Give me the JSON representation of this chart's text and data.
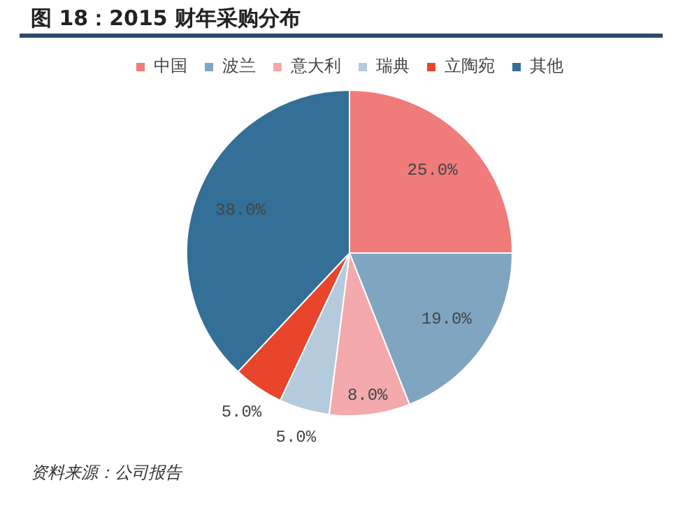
{
  "chart_data": {
    "type": "pie",
    "title": "图 18：2015 财年采购分布",
    "categories": [
      "中国",
      "波兰",
      "意大利",
      "瑞典",
      "立陶宛",
      "其他"
    ],
    "values": [
      25,
      19,
      8,
      5,
      5,
      38
    ],
    "colors": [
      "#f07b7b",
      "#7fa5c0",
      "#f4a9ad",
      "#b3cbdc",
      "#e8452c",
      "#336f96"
    ],
    "value_labels": [
      "25.0%",
      "19.0%",
      "8.0%",
      "5.0%",
      "5.0%",
      "38.0%"
    ],
    "legend": "top",
    "annotations": [
      "资料来源：公司报告"
    ]
  }
}
